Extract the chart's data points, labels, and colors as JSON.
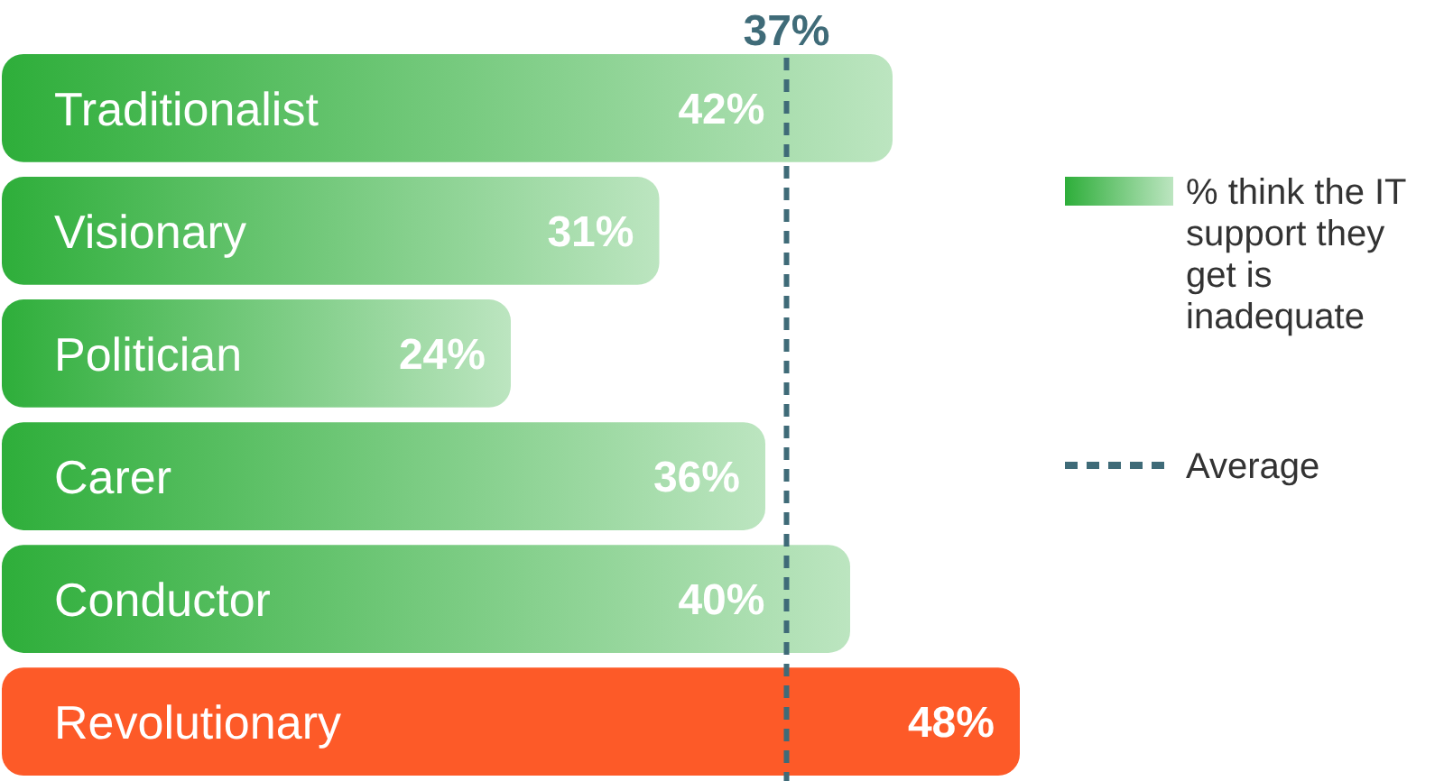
{
  "chart_data": {
    "type": "bar",
    "orientation": "horizontal",
    "categories": [
      "Traditionalist",
      "Visionary",
      "Politician",
      "Carer",
      "Conductor",
      "Revolutionary"
    ],
    "series": [
      {
        "name": "% think the IT support they get is inadequate",
        "color": "#2eae3a",
        "colors": [
          "#2eae3a",
          "#2eae3a",
          "#2eae3a",
          "#2eae3a",
          "#2eae3a",
          "#fd5a28"
        ],
        "values": [
          42,
          31,
          24,
          36,
          40,
          48
        ],
        "value_labels": [
          "42%",
          "31%",
          "24%",
          "36%",
          "40%",
          "48%"
        ]
      }
    ],
    "ref_lines": [
      {
        "axis": "x",
        "value": 37,
        "label": "37%",
        "color": "#3f6b78",
        "line_style": "dashed"
      }
    ],
    "annotations": [
      "Average"
    ],
    "legend": "right"
  }
}
